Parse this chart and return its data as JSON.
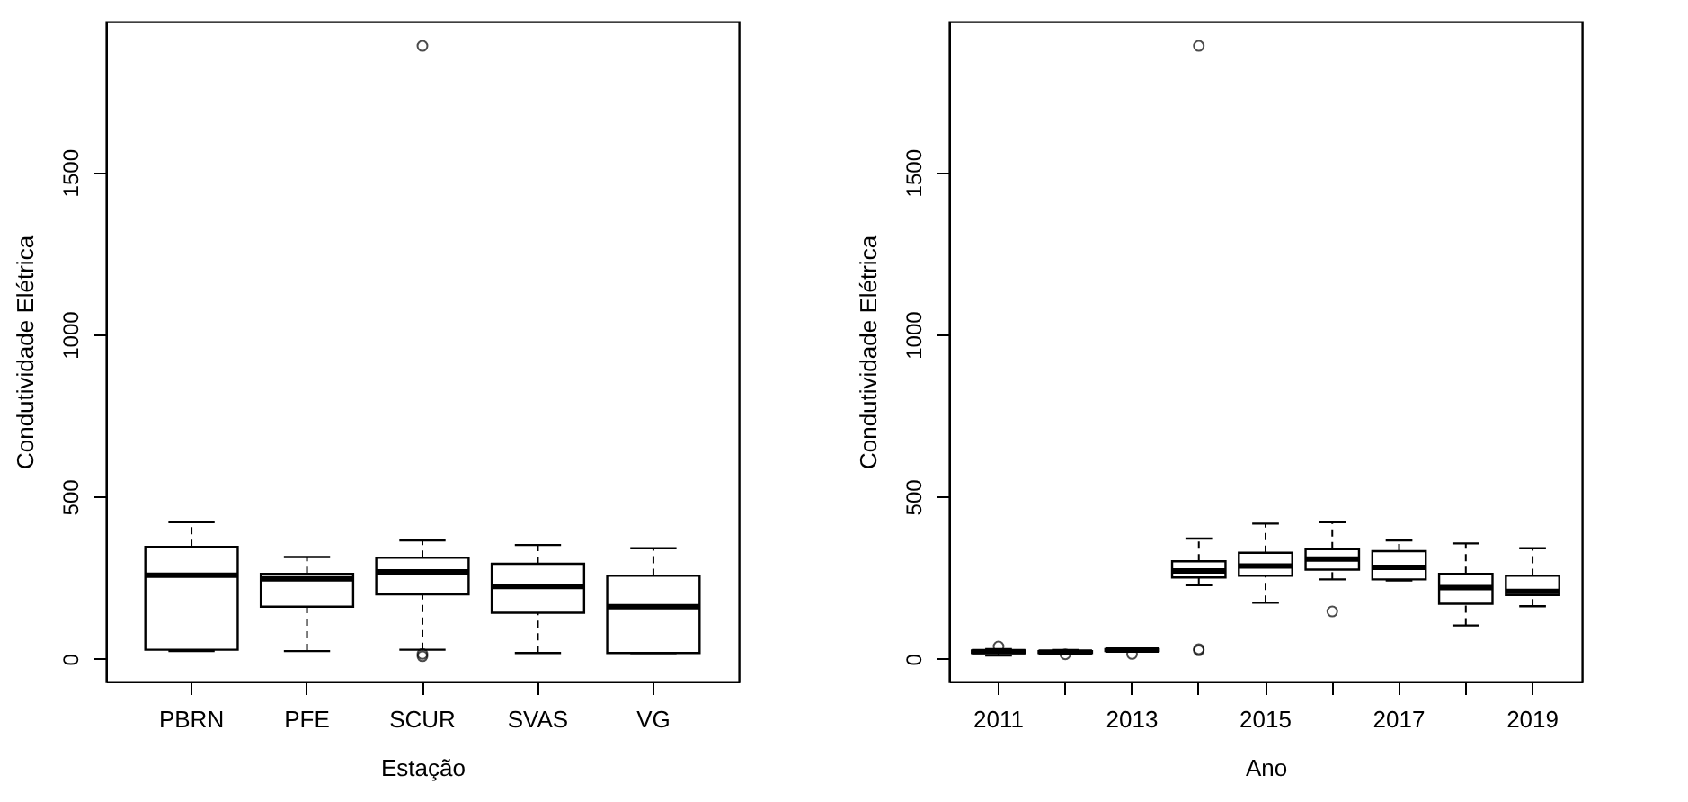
{
  "chart_data": [
    {
      "type": "box",
      "xlabel": "Estação",
      "ylabel": "Condutividade Elétrica",
      "categories": [
        "PBRN",
        "PFE",
        "SCUR",
        "SVAS",
        "VG"
      ],
      "ylim": [
        -70,
        1965
      ],
      "yticks": [
        0,
        500,
        1000,
        1500
      ],
      "boxes": [
        {
          "low": 24,
          "q1": 28,
          "median": 258,
          "q3": 345,
          "high": 421
        },
        {
          "low": 24,
          "q1": 161,
          "median": 247,
          "q3": 262,
          "high": 314
        },
        {
          "low": 28,
          "q1": 199,
          "median": 268,
          "q3": 312,
          "high": 365,
          "outliers": [
            15,
            8,
            1890
          ]
        },
        {
          "low": 18,
          "q1": 142,
          "median": 223,
          "q3": 293,
          "high": 351
        },
        {
          "low": 18,
          "q1": 18,
          "median": 161,
          "q3": 256,
          "high": 341
        }
      ]
    },
    {
      "type": "box",
      "xlabel": "Ano",
      "ylabel": "Condutividade Elétrica",
      "categories": [
        "2011",
        null,
        "2013",
        null,
        "2015",
        null,
        "2017",
        null,
        "2019"
      ],
      "ylim": [
        -70,
        1965
      ],
      "yticks": [
        0,
        500,
        1000,
        1500
      ],
      "boxes": [
        {
          "low": 10,
          "q1": 18,
          "median": 22,
          "q3": 26,
          "high": 30,
          "outliers": [
            38
          ]
        },
        {
          "low": 15,
          "q1": 18,
          "median": 21,
          "q3": 24,
          "high": 27,
          "outliers": [
            14
          ]
        },
        {
          "low": 22,
          "q1": 24,
          "median": 27,
          "q3": 30,
          "high": 32,
          "outliers": [
            15
          ]
        },
        {
          "low": 227,
          "q1": 251,
          "median": 271,
          "q3": 301,
          "high": 371,
          "outliers": [
            26,
            30,
            1890
          ]
        },
        {
          "low": 173,
          "q1": 256,
          "median": 286,
          "q3": 327,
          "high": 417
        },
        {
          "low": 245,
          "q1": 275,
          "median": 308,
          "q3": 338,
          "high": 421,
          "outliers": [
            146
          ]
        },
        {
          "low": 242,
          "q1": 245,
          "median": 282,
          "q3": 332,
          "high": 365
        },
        {
          "low": 103,
          "q1": 170,
          "median": 220,
          "q3": 262,
          "high": 356
        },
        {
          "low": 162,
          "q1": 197,
          "median": 208,
          "q3": 256,
          "high": 341
        }
      ]
    }
  ]
}
